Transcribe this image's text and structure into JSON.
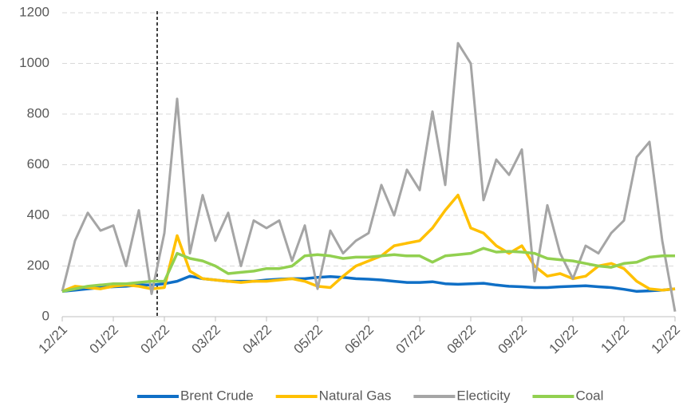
{
  "chart_data": {
    "type": "line",
    "categories": [
      "12/21",
      null,
      null,
      null,
      "01/22",
      null,
      null,
      null,
      "02/22",
      null,
      null,
      null,
      "03/22",
      null,
      null,
      null,
      "04/22",
      null,
      null,
      null,
      "05/22",
      null,
      null,
      null,
      "06/22",
      null,
      null,
      null,
      "07/22",
      null,
      null,
      null,
      "08/22",
      null,
      null,
      null,
      "09/22",
      null,
      null,
      null,
      "10/22",
      null,
      null,
      null,
      "11/22",
      null,
      null,
      null,
      "12/22"
    ],
    "series": [
      {
        "name": "Brent Crude",
        "color": "#0f6fc6",
        "values": [
          100,
          105,
          110,
          115,
          118,
          120,
          125,
          125,
          130,
          140,
          160,
          150,
          145,
          140,
          140,
          140,
          145,
          148,
          150,
          150,
          155,
          158,
          155,
          150,
          148,
          145,
          140,
          135,
          135,
          138,
          130,
          128,
          130,
          132,
          125,
          120,
          118,
          115,
          115,
          118,
          120,
          122,
          118,
          115,
          108,
          100,
          102,
          105,
          110
        ]
      },
      {
        "name": "Natural Gas",
        "color": "#ffc000",
        "values": [
          100,
          120,
          115,
          110,
          120,
          125,
          120,
          110,
          115,
          320,
          180,
          150,
          145,
          140,
          135,
          140,
          140,
          145,
          150,
          140,
          120,
          115,
          160,
          200,
          220,
          240,
          280,
          290,
          300,
          350,
          420,
          480,
          350,
          330,
          280,
          250,
          280,
          200,
          160,
          170,
          150,
          160,
          200,
          210,
          190,
          140,
          110,
          105,
          110
        ]
      },
      {
        "name": "Electicity",
        "color": "#a5a5a5",
        "values": [
          100,
          300,
          410,
          340,
          360,
          200,
          420,
          90,
          330,
          860,
          250,
          480,
          300,
          410,
          200,
          380,
          350,
          380,
          220,
          360,
          110,
          340,
          250,
          300,
          330,
          520,
          400,
          580,
          500,
          810,
          520,
          1080,
          1000,
          460,
          620,
          560,
          660,
          140,
          440,
          250,
          150,
          280,
          250,
          330,
          380,
          630,
          690,
          300,
          20
        ]
      },
      {
        "name": "Coal",
        "color": "#92d050",
        "values": [
          100,
          110,
          120,
          125,
          130,
          130,
          135,
          140,
          140,
          250,
          230,
          220,
          200,
          170,
          175,
          180,
          190,
          190,
          200,
          240,
          245,
          240,
          230,
          235,
          235,
          240,
          245,
          240,
          240,
          215,
          240,
          245,
          250,
          270,
          255,
          258,
          255,
          250,
          230,
          225,
          220,
          210,
          200,
          195,
          210,
          215,
          235,
          240,
          240
        ]
      }
    ],
    "ylim": [
      0,
      1200
    ],
    "yticks": [
      0,
      200,
      400,
      600,
      800,
      1000,
      1200
    ],
    "grid": true
  }
}
